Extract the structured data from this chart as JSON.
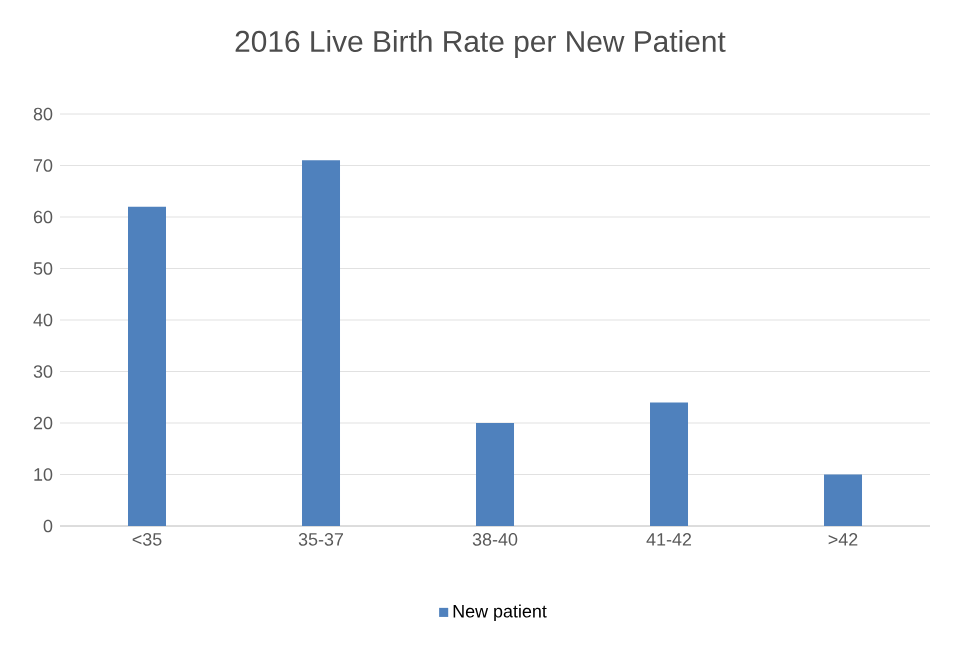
{
  "chart_data": {
    "type": "bar",
    "title": "2016 Live Birth Rate per New Patient",
    "categories": [
      "<35",
      "35-37",
      "38-40",
      "41-42",
      ">42"
    ],
    "series": [
      {
        "name": "New patient",
        "color": "#4f81bd",
        "values": [
          62,
          71,
          20,
          24,
          10
        ]
      }
    ],
    "ylim": [
      0,
      80
    ],
    "yticks": [
      0,
      10,
      20,
      30,
      40,
      50,
      60,
      70,
      80
    ],
    "grid": "y",
    "legend": "bottom"
  }
}
